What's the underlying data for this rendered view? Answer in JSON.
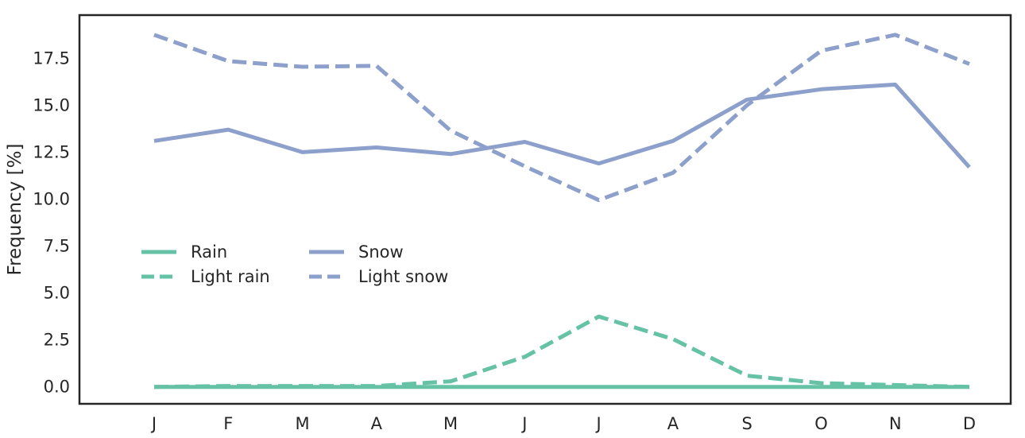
{
  "chart_data": {
    "type": "line",
    "title": "",
    "xlabel": "",
    "ylabel": "Frequency [%]",
    "categories": [
      "J",
      "F",
      "M",
      "A",
      "M",
      "J",
      "J",
      "A",
      "S",
      "O",
      "N",
      "D"
    ],
    "ylim": [
      -0.9,
      19.8
    ],
    "yticks": [
      0.0,
      2.5,
      5.0,
      7.5,
      10.0,
      12.5,
      15.0,
      17.5
    ],
    "ytick_labels": [
      "0.0",
      "2.5",
      "5.0",
      "7.5",
      "10.0",
      "12.5",
      "15.0",
      "17.5"
    ],
    "grid": false,
    "legend_position": "center-left",
    "legend_columns": 2,
    "series": [
      {
        "name": "Rain",
        "color": "#66c2a5",
        "dash": "solid",
        "values": [
          0.0,
          0.0,
          0.0,
          0.0,
          0.0,
          0.0,
          0.0,
          0.0,
          0.0,
          0.0,
          0.0,
          0.0
        ]
      },
      {
        "name": "Light rain",
        "color": "#66c2a5",
        "dash": "dashed",
        "values": [
          0.0,
          0.05,
          0.05,
          0.05,
          0.3,
          1.6,
          3.75,
          2.55,
          0.6,
          0.2,
          0.1,
          0.0
        ]
      },
      {
        "name": "Snow",
        "color": "#8da0cb",
        "dash": "solid",
        "values": [
          13.1,
          13.7,
          12.5,
          12.75,
          12.4,
          13.05,
          11.9,
          13.1,
          15.3,
          15.85,
          16.1,
          11.7
        ]
      },
      {
        "name": "Light snow",
        "color": "#8da0cb",
        "dash": "dashed",
        "values": [
          18.75,
          17.35,
          17.05,
          17.1,
          13.65,
          11.75,
          9.95,
          11.4,
          15.0,
          17.9,
          18.75,
          17.2
        ]
      }
    ]
  }
}
